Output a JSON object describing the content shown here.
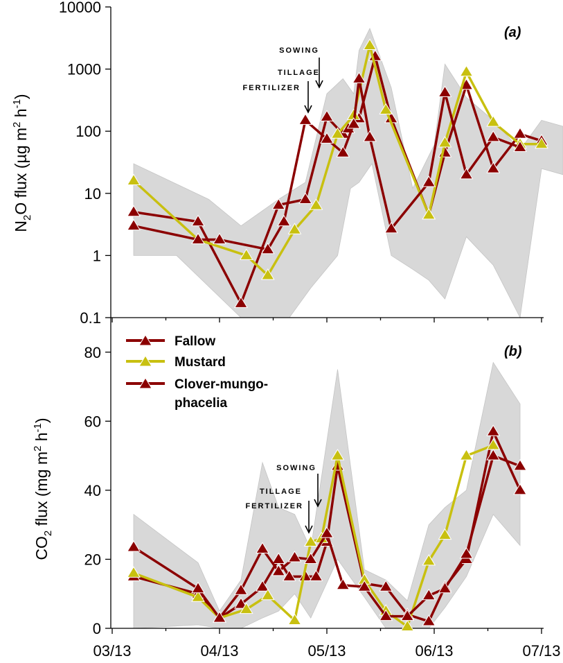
{
  "chart_data": [
    {
      "type": "line",
      "panel_label": "(a)",
      "title": "",
      "xlabel": "",
      "ylabel_parts": {
        "pre": "N",
        "sub": "2",
        "post": "O flux (µg m",
        "sup1": "2",
        "mid": " h",
        "sup2": "-1",
        "end": ")"
      },
      "yscale": "log",
      "ylim": [
        0.1,
        10000
      ],
      "yticks": [
        0.1,
        1,
        10,
        100,
        1000,
        10000
      ],
      "ytick_labels": [
        "0.1",
        "1",
        "10",
        "100",
        "1000",
        "10000"
      ],
      "xlim": [
        0,
        4.5
      ],
      "xticks": [
        0,
        1,
        2,
        3,
        4
      ],
      "band": {
        "x": [
          0.2,
          0.9,
          1.2,
          1.55,
          1.8,
          2.0,
          2.15,
          2.25,
          2.3,
          2.4,
          2.6,
          2.8,
          3.0,
          3.1,
          3.3,
          3.55,
          3.8,
          4.0,
          4.2,
          4.2,
          4.0,
          3.8,
          3.55,
          3.3,
          3.1,
          2.95,
          2.8,
          2.6,
          2.42,
          2.3,
          2.22,
          2.1,
          1.85,
          1.65,
          1.4,
          1.2,
          0.6,
          0.2
        ],
        "upper": [
          30,
          8,
          3,
          8,
          15,
          400,
          700,
          400,
          2000,
          4500,
          500,
          12,
          60,
          1200,
          350,
          150,
          50,
          150,
          120,
          20,
          25,
          0.1,
          0.7,
          2,
          0.2,
          0.4,
          0.6,
          1.0,
          30,
          15,
          12,
          1.0,
          0.3,
          0.08,
          0.08,
          0.1,
          1.0,
          1.0
        ],
        "lower": []
      },
      "series": [
        {
          "name": "Fallow",
          "color": "#8b0000",
          "x": [
            0.2,
            0.8,
            1.2,
            1.55,
            1.8,
            2.0,
            2.15,
            2.2,
            2.3,
            2.45,
            2.6,
            2.95,
            3.1,
            3.3,
            3.55,
            3.8,
            4.0,
            4.2
          ],
          "y": [
            5.0,
            3.5,
            0.17,
            6.5,
            8,
            170,
            90,
            110,
            160,
            1600,
            160,
            4.5,
            45,
            550,
            25,
            90,
            70,
            null
          ]
        },
        {
          "name": "Mustard",
          "color": "#c8c010",
          "x": [
            0.2,
            0.8,
            1.25,
            1.45,
            1.7,
            1.9,
            2.1,
            2.25,
            2.4,
            2.55,
            2.95,
            3.1,
            3.3,
            3.55,
            3.8,
            4.0
          ],
          "y": [
            16,
            1.8,
            1.0,
            0.48,
            2.6,
            6.4,
            90,
            180,
            2400,
            220,
            4.5,
            65,
            900,
            140,
            62,
            62
          ]
        },
        {
          "name": "Clover-mungo-phacelia",
          "color": "#8b0000",
          "x": [
            0.2,
            0.8,
            1.0,
            1.45,
            1.6,
            1.8,
            2.0,
            2.15,
            2.25,
            2.3,
            2.4,
            2.6,
            2.95,
            3.1,
            3.3,
            3.55,
            3.8,
            4.0
          ],
          "y": [
            3.0,
            1.8,
            1.8,
            1.25,
            3.5,
            150,
            75,
            45,
            130,
            700,
            80,
            2.7,
            15,
            420,
            20,
            80,
            55,
            null
          ]
        }
      ],
      "annotations": [
        {
          "text": "SOWING"
        },
        {
          "text": "TILLAGE"
        },
        {
          "text": "FERTILIZER"
        }
      ]
    },
    {
      "type": "line",
      "panel_label": "(b)",
      "title": "",
      "xlabel": "",
      "ylabel_parts": {
        "pre": "CO",
        "sub": "2",
        "post": " flux (mg m",
        "sup1": "2",
        "mid": " h",
        "sup2": "-1",
        "end": ")"
      },
      "yscale": "linear",
      "ylim": [
        0,
        90
      ],
      "yticks": [
        0,
        20,
        40,
        60,
        80
      ],
      "ytick_labels": [
        "0",
        "20",
        "40",
        "60",
        "80"
      ],
      "xlim": [
        0,
        4.5
      ],
      "xticks": [
        0,
        1,
        2,
        3,
        4
      ],
      "xtick_labels": [
        "03/13",
        "04/13",
        "05/13",
        "06/13",
        "07/13"
      ],
      "series": [
        {
          "name": "Fallow",
          "color": "#8b0000",
          "x": [
            0.2,
            0.8,
            1.0,
            1.2,
            1.4,
            1.55,
            1.65,
            1.8,
            1.9,
            2.0,
            2.1,
            2.35,
            2.55,
            2.75,
            2.95,
            3.1,
            3.3,
            3.55,
            3.8,
            4.0
          ],
          "y": [
            15,
            10,
            3,
            7,
            12,
            20,
            15,
            15,
            15,
            25,
            47,
            13,
            12,
            4,
            2,
            12,
            20,
            57,
            40,
            null
          ]
        },
        {
          "name": "Mustard",
          "color": "#c8c010",
          "x": [
            0.2,
            0.8,
            1.0,
            1.25,
            1.45,
            1.7,
            1.85,
            1.95,
            2.1,
            2.35,
            2.55,
            2.75,
            2.95,
            3.1,
            3.3,
            3.55,
            3.8,
            4.0
          ],
          "y": [
            16,
            9,
            3,
            5.5,
            9.5,
            2.3,
            25,
            26,
            50,
            14,
            5,
            0.5,
            19.5,
            27,
            50,
            53,
            null,
            null
          ]
        },
        {
          "name": "Clover-mungo-phacelia",
          "color": "#8b0000",
          "x": [
            0.2,
            0.8,
            1.0,
            1.2,
            1.4,
            1.55,
            1.7,
            1.85,
            2.0,
            2.15,
            2.35,
            2.55,
            2.75,
            2.95,
            3.1,
            3.3,
            3.55,
            3.8,
            4.0
          ],
          "y": [
            23.5,
            11.5,
            3,
            11,
            23,
            16.5,
            20.5,
            20,
            27.5,
            12.5,
            12,
            3.5,
            3.5,
            9.5,
            11.5,
            21.5,
            50,
            47,
            null
          ]
        }
      ],
      "annotations": [
        {
          "text": "SOWING"
        },
        {
          "text": "TILLAGE"
        },
        {
          "text": "FERTILIZER"
        }
      ]
    }
  ],
  "legend": {
    "entries": [
      {
        "label": "Fallow",
        "color": "#8b0000"
      },
      {
        "label": "Mustard",
        "color": "#c8c010"
      },
      {
        "label": "Clover-mungo-",
        "color": "#8b0000"
      },
      {
        "label": "phacelia",
        "color": null
      }
    ]
  }
}
